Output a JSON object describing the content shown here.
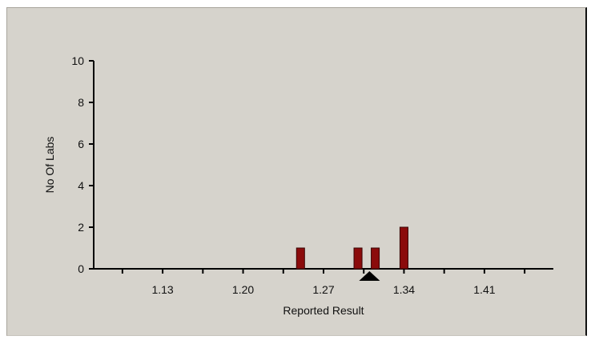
{
  "chart_data": {
    "type": "bar",
    "xlabel": "Reported Result",
    "ylabel": "No Of Labs",
    "xlim": [
      1.07,
      1.47
    ],
    "ylim": [
      0,
      10
    ],
    "x_tick_labels": [
      "1.13",
      "1.20",
      "1.27",
      "1.34",
      "1.41"
    ],
    "x_tick_values": [
      1.13,
      1.2,
      1.27,
      1.34,
      1.41
    ],
    "x_minor_ticks": [
      1.095,
      1.13,
      1.165,
      1.2,
      1.235,
      1.27,
      1.305,
      1.34,
      1.375,
      1.41,
      1.445
    ],
    "y_ticks": [
      0,
      2,
      4,
      6,
      8,
      10
    ],
    "bars": [
      {
        "x": 1.25,
        "value": 1
      },
      {
        "x": 1.3,
        "value": 1
      },
      {
        "x": 1.315,
        "value": 1
      },
      {
        "x": 1.34,
        "value": 2
      }
    ],
    "bar_width": 0.007,
    "marker": {
      "shape": "triangle",
      "x": 1.31
    },
    "grid": false,
    "colors": {
      "bar": "#8b0b0b",
      "bar_edge": "#3a0505",
      "background": "#d6d3cc",
      "axis": "#000000"
    }
  }
}
